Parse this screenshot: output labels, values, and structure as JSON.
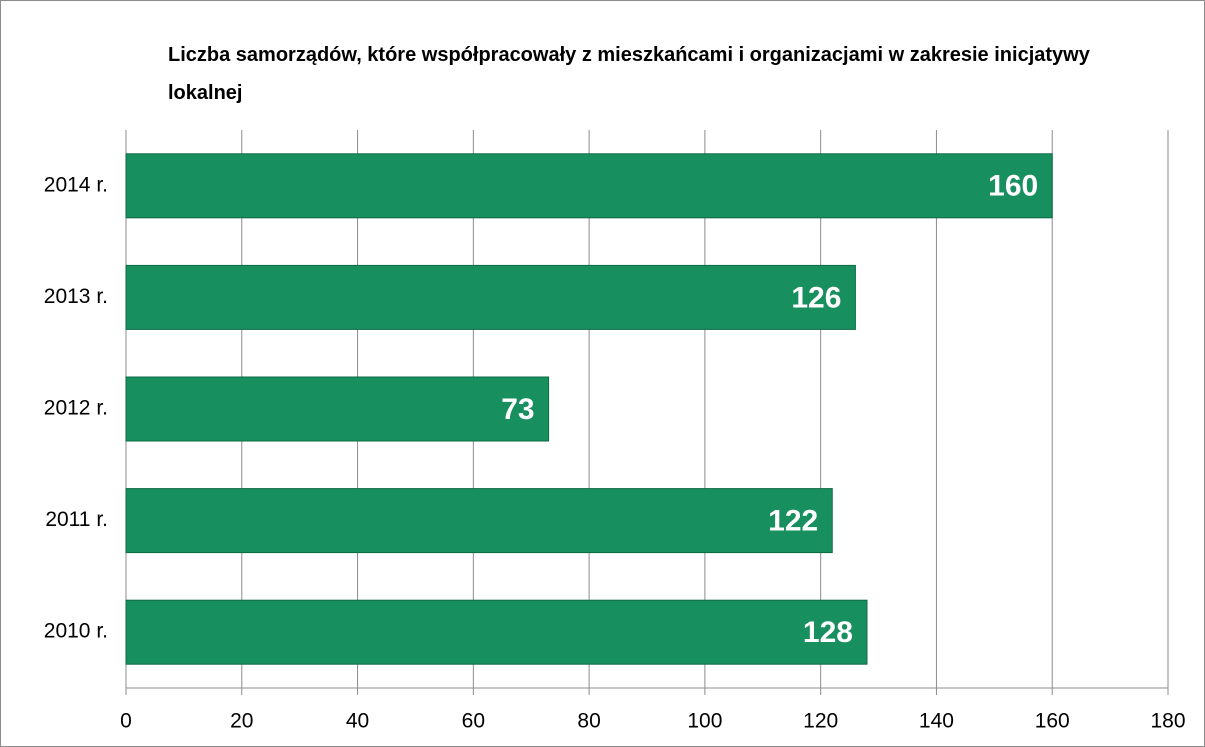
{
  "chart_data": {
    "type": "hbar",
    "title": "Liczba samorządów, które współpracowały z mieszkańcami i organizacjami w zakresie inicjatywy lokalnej",
    "categories": [
      "2014 r.",
      "2013 r.",
      "2012 r.",
      "2011 r.",
      "2010 r."
    ],
    "values": [
      160,
      126,
      73,
      122,
      128
    ],
    "color": "#178f5f",
    "xlim": [
      0,
      180
    ],
    "xticks": [
      0,
      20,
      40,
      60,
      80,
      100,
      120,
      140,
      160,
      180
    ],
    "grid": true
  }
}
